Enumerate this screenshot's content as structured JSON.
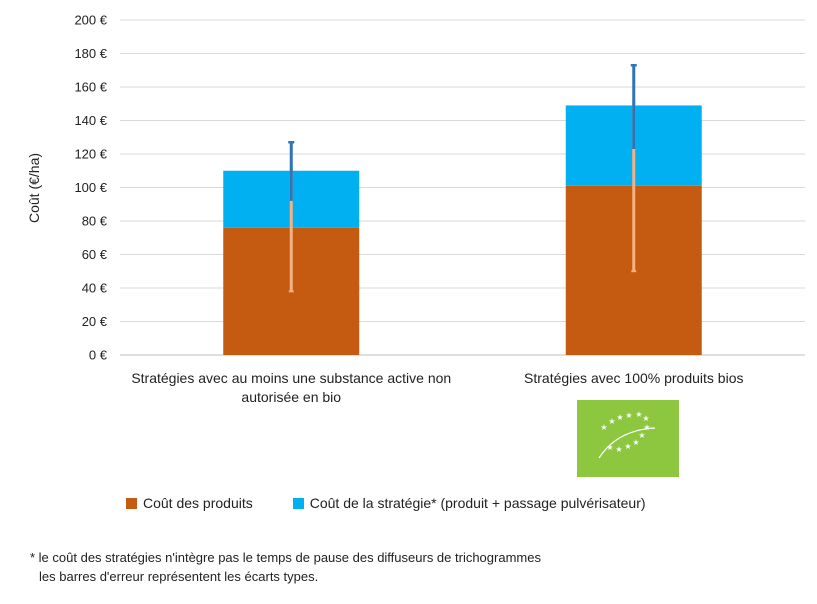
{
  "chart_data": {
    "type": "bar",
    "stacked": true,
    "categories": [
      [
        "Stratégies avec au moins une substance active non",
        "autorisée en bio"
      ],
      [
        "Stratégies avec 100% produits bios"
      ]
    ],
    "series": [
      {
        "name": "Coût des produits",
        "color": "#C55A11",
        "values": [
          76,
          101
        ],
        "error_low": [
          38,
          50
        ],
        "error_high": [
          114,
          152
        ],
        "error_color": "#F4B183"
      },
      {
        "name": "Coût de la stratégie* (produit + passage pulvérisateur)",
        "color": "#00B0F0",
        "totals": [
          110,
          149
        ],
        "error_low": [
          92,
          123
        ],
        "error_high": [
          127,
          173
        ],
        "error_color": "#2E75B6"
      }
    ],
    "ylabel": "Coût (€/ha)",
    "yticks": [
      "0 €",
      "20 €",
      "40 €",
      "60 €",
      "80 €",
      "100 €",
      "120 €",
      "140 €",
      "160 €",
      "180 €",
      "200 €"
    ],
    "ylim": [
      0,
      200
    ],
    "grid": true,
    "legend_position": "bottom",
    "logo": {
      "name": "eu-organic-leaf-logo",
      "background": "#8DC63F",
      "star_color": "#ffffff"
    }
  },
  "footnote": {
    "line1": "* le coût des stratégies n'intègre pas le temps de pause des diffuseurs de trichogrammes",
    "line2": "les barres d'erreur représentent les écarts types."
  }
}
